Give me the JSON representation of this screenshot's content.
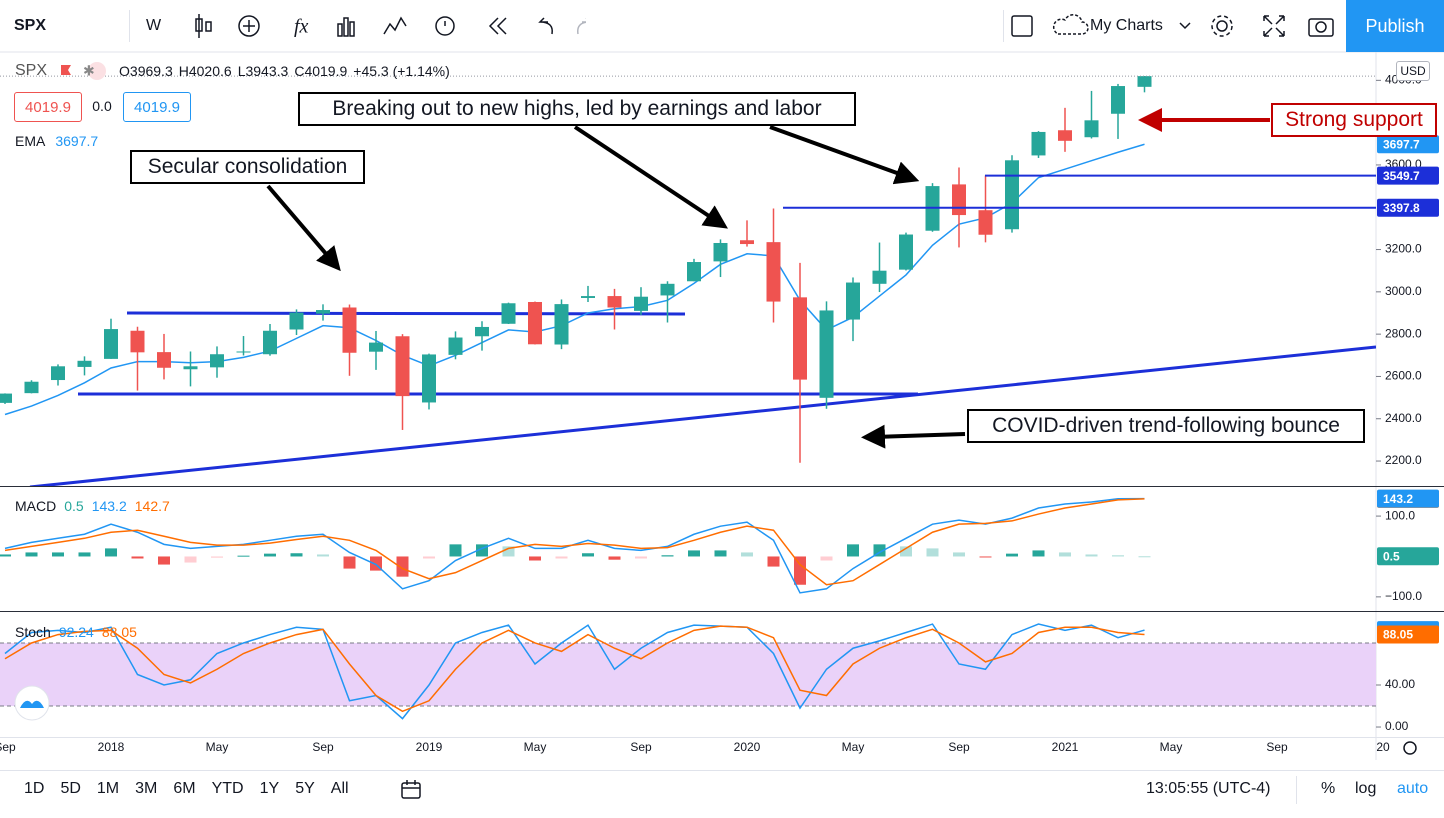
{
  "toolbar": {
    "symbol": "SPX",
    "interval": "W",
    "layout_name": "My Charts",
    "publish": "Publish"
  },
  "legend": {
    "symbol": "SPX",
    "prefixes": [
      "O",
      "H",
      "L",
      "C"
    ],
    "change": "+45.3 (+1.14%)",
    "bid": 4019.9,
    "spread": "0.0",
    "ask": 4019.9,
    "currency": "USD"
  },
  "annotations": {
    "breakout": "Breaking out to new highs, led by earnings and labor",
    "consolidation": "Secular consolidation",
    "covid": "COVID-driven trend-following bounce",
    "support": "Strong support"
  },
  "bottom_bar": {
    "ranges": [
      "1D",
      "5D",
      "1M",
      "3M",
      "6M",
      "YTD",
      "1Y",
      "5Y",
      "All"
    ],
    "time": "13:05:55 (UTC-4)",
    "percent": "%",
    "log": "log",
    "auto": "auto"
  },
  "chart_data": [
    {
      "type": "candlestick",
      "categories": [
        "Sep",
        null,
        null,
        null,
        "2018",
        null,
        null,
        null,
        "May",
        null,
        null,
        null,
        "Sep",
        null,
        null,
        null,
        "2019",
        null,
        null,
        null,
        "May",
        null,
        null,
        null,
        "Sep",
        null,
        null,
        null,
        "2020",
        null,
        null,
        null,
        "May",
        null,
        null,
        null,
        "Sep",
        null,
        null,
        null,
        "2021",
        null,
        null,
        null,
        "May",
        null,
        null,
        null,
        "Sep",
        null,
        null,
        null,
        "20"
      ],
      "open": [
        2475,
        2521,
        2583,
        2645,
        2683,
        2816,
        2715,
        2634,
        2643,
        2718,
        2705,
        2822,
        2897,
        2926,
        2717,
        2790,
        2477,
        2702,
        2790,
        2849,
        2952,
        2751,
        2971,
        2980,
        2910,
        2983,
        3050,
        3144,
        3244,
        3235,
        2974,
        2499,
        2869,
        3038,
        3105,
        3289,
        3508,
        3386,
        3296,
        3645,
        3764,
        3731,
        3842,
        3969.3,
        null,
        null,
        null,
        null,
        null,
        null,
        null,
        null,
        null
      ],
      "high": [
        2520,
        2582,
        2657,
        2695,
        2873,
        2835,
        2801,
        2718,
        2742,
        2791,
        2848,
        2917,
        2941,
        2940,
        2815,
        2800,
        2708,
        2813,
        2861,
        2949,
        2954,
        2964,
        3028,
        3014,
        3022,
        3050,
        3156,
        3248,
        3338,
        3394,
        3137,
        2955,
        3068,
        3233,
        3280,
        3514,
        3588,
        3550,
        3646,
        3760,
        3870,
        3950,
        3983,
        4020.6,
        null,
        null,
        null,
        null,
        null,
        null,
        null,
        null,
        null
      ],
      "low": [
        2470,
        2520,
        2557,
        2605,
        2683,
        2533,
        2586,
        2553,
        2594,
        2699,
        2698,
        2796,
        2864,
        2603,
        2631,
        2347,
        2444,
        2681,
        2722,
        2848,
        2751,
        2729,
        2952,
        2822,
        2891,
        2855,
        3050,
        3070,
        3214,
        2855,
        2192,
        2447,
        2767,
        2999,
        3101,
        3284,
        3210,
        3234,
        3280,
        3633,
        3662,
        3725,
        3723,
        3943.3,
        null,
        null,
        null,
        null,
        null,
        null,
        null,
        null,
        null
      ],
      "close": [
        2519,
        2575,
        2648,
        2674,
        2824,
        2714,
        2641,
        2648,
        2705,
        2718,
        2816,
        2902,
        2914,
        2712,
        2760,
        2507,
        2704,
        2784,
        2834,
        2946,
        2752,
        2942,
        2980,
        2926,
        2977,
        3038,
        3141,
        3231,
        3226,
        2954,
        2585,
        2912,
        3044,
        3100,
        3271,
        3500,
        3363,
        3270,
        3622,
        3756,
        3714,
        3811,
        3973,
        4019.9,
        null,
        null,
        null,
        null,
        null,
        null,
        null,
        null,
        null
      ],
      "up_color": "#26a69a",
      "down_color": "#ef5350",
      "series": [
        {
          "name": "EMA",
          "color": "#2196f3",
          "values": [
            2420,
            2460,
            2510,
            2570,
            2640,
            2670,
            2670,
            2665,
            2670,
            2690,
            2720,
            2780,
            2840,
            2830,
            2770,
            2700,
            2650,
            2700,
            2760,
            2820,
            2810,
            2840,
            2900,
            2920,
            2930,
            2960,
            3040,
            3130,
            3180,
            3170,
            2960,
            2820,
            2880,
            2980,
            3080,
            3220,
            3320,
            3350,
            3420,
            3540,
            3580,
            3620,
            3660,
            3697.7,
            null,
            null,
            null,
            null,
            null,
            null,
            null,
            null,
            null
          ]
        }
      ],
      "levels": [
        3397.8,
        3549.7
      ],
      "level_color": "#1c2fd8",
      "ylim": [
        2082,
        4134
      ],
      "yticks": [
        {
          "value": 4000,
          "label": "4000.0"
        },
        {
          "value": 3600,
          "label": "3600.0"
        },
        {
          "value": 3200,
          "label": "3200.0"
        },
        {
          "value": 3000,
          "label": "3000.0"
        },
        {
          "value": 2800,
          "label": "2800.0"
        },
        {
          "value": 2600,
          "label": "2600.0"
        },
        {
          "value": 2400,
          "label": "2400.0"
        },
        {
          "value": 2200,
          "label": "2200.0"
        }
      ]
    },
    {
      "type": "macd",
      "title": "MACD",
      "histogram": [
        5,
        10,
        10,
        10,
        20,
        -5,
        -20,
        -15,
        -3,
        2,
        7,
        8,
        5,
        -30,
        -35,
        -50,
        -5,
        30,
        30,
        25,
        -10,
        -5,
        8,
        -8,
        -5,
        3,
        15,
        15,
        10,
        -25,
        -70,
        -10,
        30,
        30,
        25,
        20,
        10,
        -2,
        7,
        15,
        10,
        5,
        3,
        0.5,
        null,
        null,
        null,
        null,
        null,
        null,
        null,
        null,
        null
      ],
      "histogram_colors": [
        "#26a69a",
        "#b2dfdb",
        "#ffcdd2",
        "#ef5350"
      ],
      "series": [
        {
          "color": "#2196f3",
          "values": [
            20,
            35,
            45,
            55,
            80,
            60,
            30,
            20,
            25,
            30,
            40,
            50,
            55,
            10,
            -20,
            -80,
            -60,
            -10,
            20,
            45,
            20,
            20,
            40,
            20,
            15,
            25,
            55,
            75,
            85,
            40,
            -90,
            -80,
            -30,
            10,
            45,
            80,
            90,
            80,
            95,
            120,
            130,
            135,
            143,
            143.2,
            null,
            null,
            null,
            null,
            null,
            null,
            null,
            null,
            null
          ]
        },
        {
          "color": "#ff6d00",
          "values": [
            15,
            25,
            35,
            45,
            60,
            65,
            50,
            35,
            28,
            28,
            33,
            42,
            50,
            40,
            15,
            -30,
            -55,
            -40,
            -10,
            20,
            30,
            25,
            32,
            28,
            20,
            22,
            40,
            60,
            75,
            65,
            -20,
            -70,
            -60,
            -20,
            20,
            60,
            80,
            82,
            88,
            105,
            120,
            130,
            140,
            142.7,
            null,
            null,
            null,
            null,
            null,
            null,
            null,
            null,
            null
          ]
        }
      ],
      "ylim": [
        -135,
        172
      ],
      "yticks": [
        {
          "value": 100,
          "label": "100.0"
        },
        {
          "value": -100,
          "label": "−100.0"
        }
      ]
    },
    {
      "type": "stochastic",
      "title": "Stoch",
      "series": [
        {
          "color": "#2196f3",
          "values": [
            70,
            90,
            92,
            90,
            95,
            50,
            40,
            45,
            70,
            80,
            88,
            95,
            93,
            25,
            30,
            8,
            40,
            80,
            90,
            97,
            60,
            80,
            97,
            55,
            75,
            90,
            97,
            96,
            95,
            70,
            18,
            55,
            75,
            82,
            90,
            98,
            60,
            55,
            88,
            98,
            92,
            97,
            85,
            92.24,
            null,
            null,
            null,
            null,
            null,
            null,
            null,
            null,
            null
          ]
        },
        {
          "color": "#ff6d00",
          "values": [
            65,
            80,
            88,
            91,
            92,
            75,
            50,
            42,
            55,
            70,
            80,
            88,
            93,
            60,
            30,
            15,
            25,
            55,
            80,
            92,
            80,
            72,
            88,
            75,
            65,
            80,
            92,
            96,
            95,
            85,
            35,
            30,
            60,
            75,
            85,
            93,
            80,
            62,
            70,
            90,
            95,
            95,
            90,
            88.05,
            null,
            null,
            null,
            null,
            null,
            null,
            null,
            null,
            null
          ]
        }
      ],
      "bands": [
        20,
        80
      ],
      "band_color": "#ead2f9",
      "ylim": [
        -9.5,
        109.5
      ],
      "yticks": [
        {
          "value": 40,
          "label": "40.00"
        },
        {
          "value": 0,
          "label": "0.00"
        }
      ]
    }
  ]
}
